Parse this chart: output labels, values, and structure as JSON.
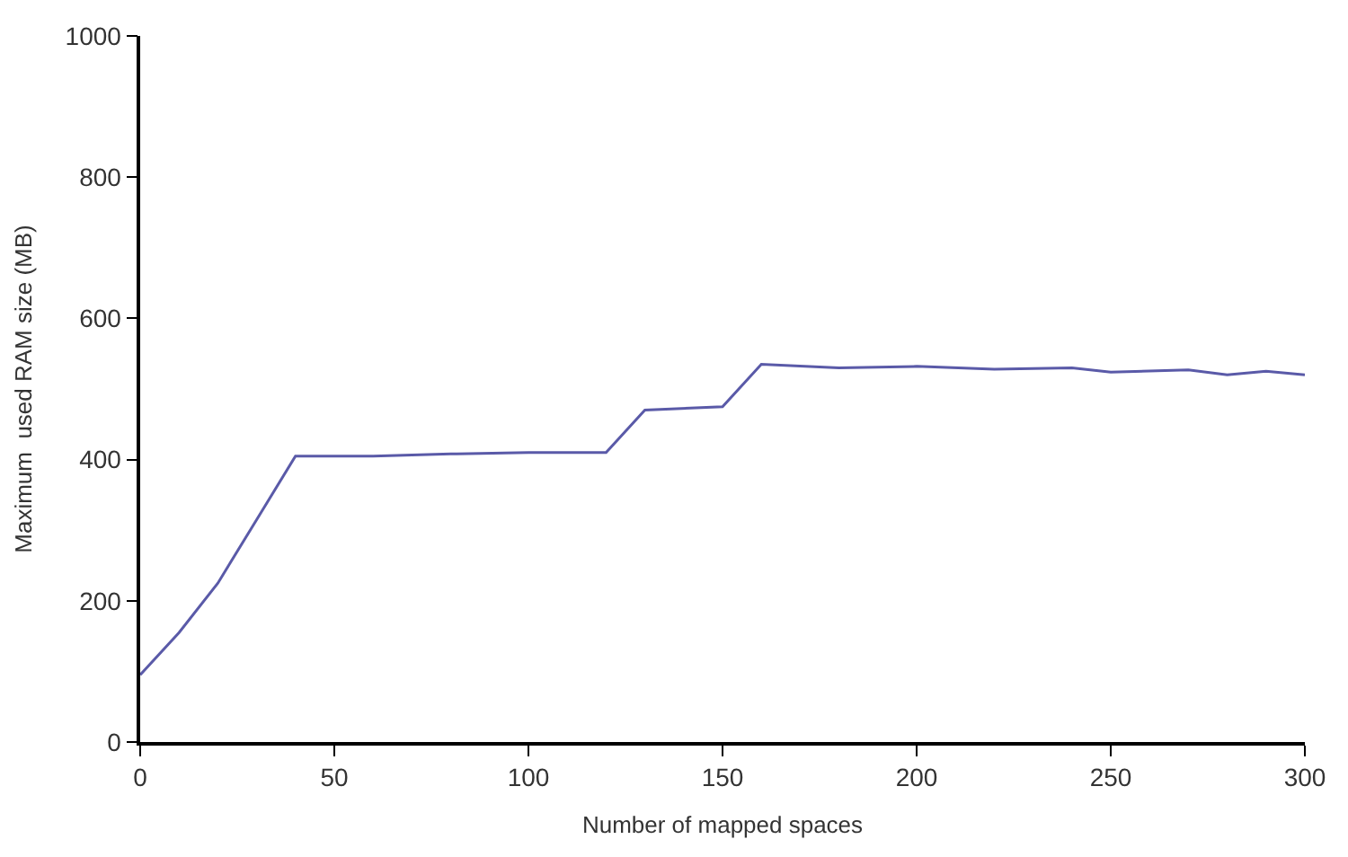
{
  "chart_data": {
    "type": "line",
    "xlabel": "Number of mapped spaces",
    "ylabel": "Maximum  used RAM size (MB)",
    "x": [
      0,
      10,
      20,
      30,
      40,
      60,
      80,
      100,
      120,
      130,
      150,
      160,
      180,
      200,
      220,
      240,
      250,
      270,
      280,
      290,
      300
    ],
    "series": [
      {
        "color": "#5a5aa8",
        "values": [
          95,
          155,
          225,
          315,
          405,
          405,
          408,
          410,
          410,
          470,
          475,
          535,
          530,
          532,
          528,
          530,
          524,
          527,
          520,
          525,
          520
        ]
      }
    ],
    "xlim": [
      0,
      300
    ],
    "xticks": [
      0,
      50,
      100,
      150,
      200,
      250,
      300
    ],
    "ylim": [
      0,
      1000
    ],
    "yticks": [
      0,
      200,
      400,
      600,
      800,
      1000
    ],
    "legend": false,
    "marker": "none",
    "line_style": "solid"
  }
}
